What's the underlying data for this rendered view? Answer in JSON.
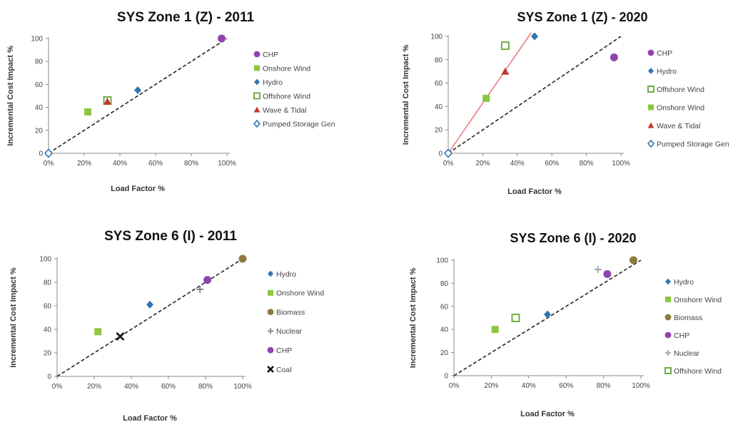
{
  "chart_data": [
    {
      "type": "scatter",
      "title": "SYS Zone 1 (Z) - 2011",
      "xlabel": "Load Factor %",
      "ylabel": "Incremental Cost Impact %",
      "xlim": [
        0,
        100
      ],
      "ylim": [
        0,
        100
      ],
      "x_ticks": [
        "0%",
        "20%",
        "40%",
        "60%",
        "80%",
        "100%"
      ],
      "y_ticks": [
        "0",
        "20",
        "40",
        "60",
        "80",
        "100"
      ],
      "grid": false,
      "legend_position": "right",
      "reference_line": {
        "style": "dashed",
        "color": "#222222",
        "points": [
          [
            0,
            0
          ],
          [
            100,
            100
          ]
        ]
      },
      "series": [
        {
          "name": "CHP",
          "marker": "circle",
          "color": "#8e44ad",
          "points": [
            [
              97,
              100
            ]
          ]
        },
        {
          "name": "Onshore Wind",
          "marker": "square",
          "color": "#8dc63f",
          "points": [
            [
              22,
              36
            ]
          ]
        },
        {
          "name": "Hydro",
          "marker": "diamond",
          "color": "#2e75b6",
          "points": [
            [
              50,
              55
            ]
          ]
        },
        {
          "name": "Offshore Wind",
          "marker": "square-open",
          "color": "#70ad47",
          "points": [
            [
              33,
              46
            ]
          ]
        },
        {
          "name": "Wave & Tidal",
          "marker": "triangle",
          "color": "#c0392b",
          "points": [
            [
              33,
              45
            ]
          ]
        },
        {
          "name": "Pumped Storage Gen",
          "marker": "diamond-open",
          "color": "#2e75b6",
          "points": [
            [
              0,
              0
            ]
          ]
        }
      ]
    },
    {
      "type": "scatter",
      "title": "SYS Zone 1 (Z) - 2020",
      "xlabel": "Load Factor %",
      "ylabel": "Incremental Cost Impact %",
      "xlim": [
        0,
        100
      ],
      "ylim": [
        0,
        100
      ],
      "x_ticks": [
        "0%",
        "20%",
        "40%",
        "60%",
        "80%",
        "100%"
      ],
      "y_ticks": [
        "0",
        "20",
        "40",
        "60",
        "80",
        "100"
      ],
      "grid": false,
      "legend_position": "right",
      "reference_line": {
        "style": "dashed",
        "color": "#222222",
        "points": [
          [
            0,
            0
          ],
          [
            100,
            100
          ]
        ]
      },
      "trend_line": {
        "style": "solid",
        "color": "#e07070",
        "points": [
          [
            0,
            0
          ],
          [
            48,
            103
          ]
        ]
      },
      "series": [
        {
          "name": "CHP",
          "marker": "circle",
          "color": "#8e44ad",
          "points": [
            [
              96,
              82
            ]
          ]
        },
        {
          "name": "Hydro",
          "marker": "diamond",
          "color": "#2e75b6",
          "points": [
            [
              50,
              100
            ]
          ]
        },
        {
          "name": "Offshore Wind",
          "marker": "square-open",
          "color": "#70ad47",
          "points": [
            [
              33,
              92
            ]
          ]
        },
        {
          "name": "Onshore Wind",
          "marker": "square",
          "color": "#8dc63f",
          "points": [
            [
              22,
              47
            ]
          ]
        },
        {
          "name": "Wave & Tidal",
          "marker": "triangle",
          "color": "#c0392b",
          "points": [
            [
              33,
              70
            ]
          ]
        },
        {
          "name": "Pumped Storage Gen",
          "marker": "diamond-open",
          "color": "#2e75b6",
          "points": [
            [
              0,
              0
            ]
          ]
        }
      ]
    },
    {
      "type": "scatter",
      "title": "SYS Zone 6 (I) - 2011",
      "xlabel": "Load Factor %",
      "ylabel": "Incremental Cost Impact %",
      "xlim": [
        0,
        100
      ],
      "ylim": [
        0,
        100
      ],
      "x_ticks": [
        "0%",
        "20%",
        "40%",
        "60%",
        "80%",
        "100%"
      ],
      "y_ticks": [
        "0",
        "20",
        "40",
        "60",
        "80",
        "100"
      ],
      "grid": false,
      "legend_position": "right",
      "reference_line": {
        "style": "dashed",
        "color": "#222222",
        "points": [
          [
            0,
            0
          ],
          [
            100,
            100
          ]
        ]
      },
      "series": [
        {
          "name": "Hydro",
          "marker": "diamond",
          "color": "#2e75b6",
          "points": [
            [
              50,
              61
            ]
          ]
        },
        {
          "name": "Onshore Wind",
          "marker": "square",
          "color": "#8dc63f",
          "points": [
            [
              22,
              38
            ]
          ]
        },
        {
          "name": "Biomass",
          "marker": "circle",
          "color": "#8c7a3a",
          "points": [
            [
              100,
              100
            ]
          ]
        },
        {
          "name": "Nuclear",
          "marker": "plus",
          "color": "#888888",
          "points": [
            [
              77,
              74
            ]
          ]
        },
        {
          "name": "CHP",
          "marker": "circle",
          "color": "#8e44ad",
          "points": [
            [
              81,
              82
            ]
          ]
        },
        {
          "name": "Coal",
          "marker": "x",
          "color": "#111111",
          "points": [
            [
              34,
              34
            ]
          ]
        }
      ]
    },
    {
      "type": "scatter",
      "title": "SYS Zone 6 (I) - 2020",
      "xlabel": "Load Factor %",
      "ylabel": "Incremental Cost Impact %",
      "xlim": [
        0,
        100
      ],
      "ylim": [
        0,
        100
      ],
      "x_ticks": [
        "0%",
        "20%",
        "40%",
        "60%",
        "80%",
        "100%"
      ],
      "y_ticks": [
        "0",
        "20",
        "40",
        "60",
        "80",
        "100"
      ],
      "grid": false,
      "legend_position": "right",
      "reference_line": {
        "style": "dashed",
        "color": "#222222",
        "points": [
          [
            0,
            0
          ],
          [
            100,
            100
          ]
        ]
      },
      "series": [
        {
          "name": "Hydro",
          "marker": "diamond",
          "color": "#2e75b6",
          "points": [
            [
              50,
              53
            ]
          ]
        },
        {
          "name": "Onshore Wind",
          "marker": "square",
          "color": "#8dc63f",
          "points": [
            [
              22,
              40
            ]
          ]
        },
        {
          "name": "Biomass",
          "marker": "circle",
          "color": "#8c7a3a",
          "points": [
            [
              96,
              100
            ]
          ]
        },
        {
          "name": "CHP",
          "marker": "circle",
          "color": "#8e44ad",
          "points": [
            [
              82,
              88
            ]
          ]
        },
        {
          "name": "Nuclear",
          "marker": "plus",
          "color": "#aaaaaa",
          "points": [
            [
              77,
              92
            ]
          ]
        },
        {
          "name": "Offshore Wind",
          "marker": "square-open",
          "color": "#70ad47",
          "points": [
            [
              33,
              50
            ]
          ]
        }
      ]
    }
  ]
}
